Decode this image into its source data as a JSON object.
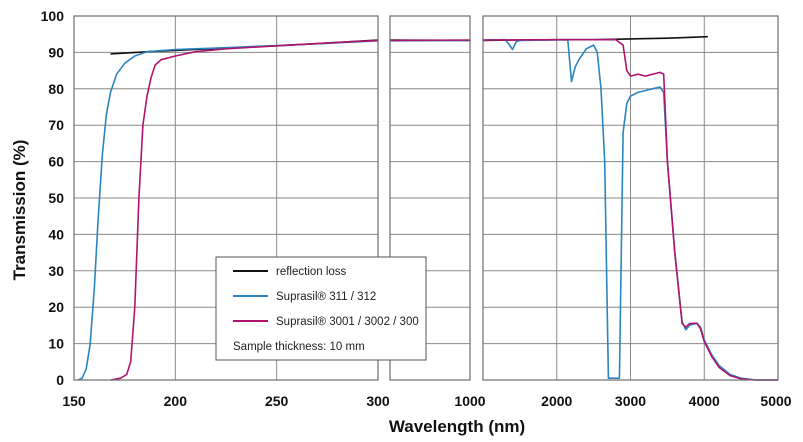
{
  "chart_data": {
    "type": "line",
    "xlabel": "Wavelength (nm)",
    "ylabel": "Transmission (%)",
    "ylim": [
      0,
      100
    ],
    "yticks": [
      "0",
      "10",
      "20",
      "30",
      "40",
      "50",
      "60",
      "70",
      "80",
      "90",
      "100"
    ],
    "x_segments": [
      {
        "range": [
          150,
          300
        ],
        "ticks": [
          "150",
          "200",
          "250",
          "300"
        ]
      },
      {
        "range": [
          300,
          1000
        ],
        "ticks": []
      },
      {
        "range": [
          1000,
          5000
        ],
        "ticks": [
          "1000",
          "2000",
          "3000",
          "4000",
          "5000"
        ]
      }
    ],
    "grid": true,
    "legend_position": "bottom-center",
    "series": [
      {
        "name": "reflection loss",
        "color": "#111111",
        "points": [
          [
            168,
            89.6
          ],
          [
            175,
            89.8
          ],
          [
            190,
            90.3
          ],
          [
            210,
            90.8
          ],
          [
            230,
            91.3
          ],
          [
            250,
            91.8
          ],
          [
            270,
            92.4
          ],
          [
            285,
            92.9
          ],
          [
            300,
            93.4
          ],
          [
            300,
            93.4
          ],
          [
            1000,
            93.3
          ],
          [
            1500,
            93.4
          ],
          [
            2000,
            93.5
          ],
          [
            2500,
            93.5
          ],
          [
            3000,
            93.7
          ],
          [
            3500,
            93.9
          ],
          [
            4050,
            94.3
          ]
        ]
      },
      {
        "name": "Suprasil® 311 / 312",
        "color": "#2a85c0",
        "points": [
          [
            152,
            0
          ],
          [
            154,
            0.5
          ],
          [
            156,
            3
          ],
          [
            158,
            10
          ],
          [
            160,
            25
          ],
          [
            162,
            45
          ],
          [
            164,
            62
          ],
          [
            166,
            73
          ],
          [
            168,
            79
          ],
          [
            171,
            84
          ],
          [
            175,
            87
          ],
          [
            180,
            89
          ],
          [
            186,
            90.2
          ],
          [
            200,
            90.8
          ],
          [
            225,
            91.3
          ],
          [
            250,
            91.9
          ],
          [
            275,
            92.5
          ],
          [
            300,
            93.2
          ],
          [
            300,
            93.2
          ],
          [
            1000,
            93.3
          ],
          [
            1000,
            93.4
          ],
          [
            1300,
            93.5
          ],
          [
            1350,
            92.3
          ],
          [
            1400,
            90.8
          ],
          [
            1450,
            92.9
          ],
          [
            1500,
            93.3
          ],
          [
            2000,
            93.4
          ],
          [
            2150,
            93.4
          ],
          [
            2200,
            82
          ],
          [
            2250,
            86
          ],
          [
            2300,
            88
          ],
          [
            2400,
            91
          ],
          [
            2500,
            92
          ],
          [
            2550,
            90
          ],
          [
            2600,
            80
          ],
          [
            2650,
            60
          ],
          [
            2700,
            0.5
          ],
          [
            2800,
            0.5
          ],
          [
            2850,
            0.5
          ],
          [
            2900,
            68
          ],
          [
            2950,
            76
          ],
          [
            3000,
            78
          ],
          [
            3100,
            79
          ],
          [
            3200,
            79.5
          ],
          [
            3300,
            80
          ],
          [
            3400,
            80.5
          ],
          [
            3450,
            79
          ],
          [
            3500,
            60
          ],
          [
            3600,
            35
          ],
          [
            3700,
            16
          ],
          [
            3750,
            13.8
          ],
          [
            3800,
            15
          ],
          [
            3900,
            15.6
          ],
          [
            3950,
            14.5
          ],
          [
            4000,
            11
          ],
          [
            4100,
            7
          ],
          [
            4200,
            4
          ],
          [
            4350,
            1.5
          ],
          [
            4500,
            0.5
          ],
          [
            4700,
            0
          ],
          [
            5000,
            0
          ]
        ]
      },
      {
        "name": "Suprasil® 3001 / 3002 / 300",
        "color": "#b0146e",
        "points": [
          [
            168,
            0
          ],
          [
            170,
            0.2
          ],
          [
            173,
            0.5
          ],
          [
            176,
            1.5
          ],
          [
            178,
            5
          ],
          [
            180,
            20
          ],
          [
            182,
            50
          ],
          [
            184,
            70
          ],
          [
            186,
            78
          ],
          [
            188,
            83
          ],
          [
            190,
            86.5
          ],
          [
            193,
            88
          ],
          [
            200,
            89
          ],
          [
            210,
            90.2
          ],
          [
            225,
            91
          ],
          [
            250,
            91.8
          ],
          [
            275,
            92.6
          ],
          [
            300,
            93.3
          ],
          [
            300,
            93.3
          ],
          [
            1000,
            93.4
          ],
          [
            1000,
            93.4
          ],
          [
            2000,
            93.5
          ],
          [
            2800,
            93.5
          ],
          [
            2900,
            92
          ],
          [
            2950,
            85
          ],
          [
            3000,
            83.5
          ],
          [
            3100,
            84
          ],
          [
            3200,
            83.5
          ],
          [
            3300,
            84
          ],
          [
            3400,
            84.5
          ],
          [
            3450,
            84
          ],
          [
            3500,
            60
          ],
          [
            3600,
            35
          ],
          [
            3700,
            15.5
          ],
          [
            3750,
            14.5
          ],
          [
            3800,
            15.5
          ],
          [
            3900,
            15.6
          ],
          [
            3950,
            14
          ],
          [
            4000,
            10.5
          ],
          [
            4100,
            6.5
          ],
          [
            4200,
            3.5
          ],
          [
            4350,
            1.2
          ],
          [
            4500,
            0.3
          ],
          [
            4700,
            0
          ],
          [
            5000,
            0
          ]
        ]
      }
    ],
    "annotation": "Sample thickness: 10 mm"
  }
}
